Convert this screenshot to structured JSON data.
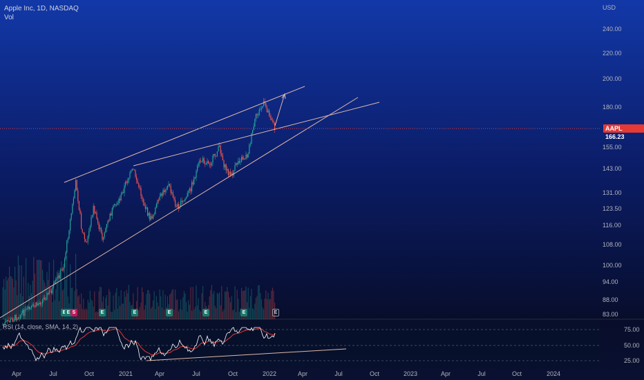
{
  "header": {
    "title": "Apple Inc, 1D, NASDAQ",
    "volume_label": "Vol"
  },
  "price_axis": {
    "currency": "USD",
    "ticks": [
      "240.00",
      "220.00",
      "200.00",
      "180.00",
      "155.00",
      "143.00",
      "131.00",
      "123.50",
      "116.00",
      "108.00",
      "100.00",
      "94.00",
      "88.00",
      "83.00"
    ]
  },
  "last_price": {
    "symbol": "AAPL",
    "value": "166.23",
    "color": "#e53935"
  },
  "rsi": {
    "label": "RSI (14, close, SMA, 14, 2)",
    "ticks": [
      "75.00",
      "50.00",
      "25.00"
    ]
  },
  "time_axis": {
    "labels": [
      "Apr",
      "Jul",
      "Oct",
      "2021",
      "Apr",
      "Jul",
      "Oct",
      "2022",
      "Apr",
      "Jul",
      "Oct",
      "2023",
      "Apr",
      "Jul",
      "Oct",
      "2024"
    ]
  },
  "markers": [
    {
      "letter": "E",
      "type": "earnings"
    },
    {
      "letter": "E",
      "type": "earnings"
    },
    {
      "letter": "S",
      "type": "split"
    },
    {
      "letter": "E",
      "type": "earnings"
    },
    {
      "letter": "E",
      "type": "earnings"
    },
    {
      "letter": "E",
      "type": "earnings"
    },
    {
      "letter": "E",
      "type": "earnings"
    },
    {
      "letter": "E",
      "type": "earnings"
    },
    {
      "letter": "E",
      "type": "upcoming"
    }
  ],
  "colors": {
    "up": "#26a69a",
    "down": "#ef5350",
    "trendline": "#e0b8a8",
    "rsi_line": "#ffffff",
    "rsi_ma": "#e53935"
  }
}
